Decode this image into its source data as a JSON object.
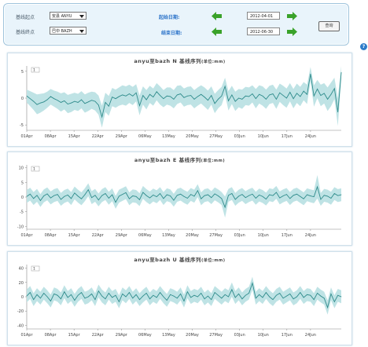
{
  "query": {
    "station_label": "基线起点",
    "station_value": "安县 ANYU",
    "end_label": "基线终点",
    "end_value": "巴中 BAZH",
    "start_date_label": "起始日期:",
    "start_date": "2012-04-01",
    "end_date_label": "结束日期:",
    "end_date": "2012-06-30",
    "query_button": "查询",
    "help_icon": "?"
  },
  "colors": {
    "line": "#2e8b8b",
    "band": "#bfe3e5",
    "arrow": "#3aa22a"
  },
  "chart_data": [
    {
      "type": "line",
      "title": "anyu至bazh N 基线序列",
      "unit_note": "(单位:mm)",
      "legend_box": "1",
      "x_labels": [
        "01Apr",
        "08Apr",
        "15Apr",
        "22Apr",
        "29Apr",
        "06May",
        "13May",
        "20May",
        "27May",
        "03Jun",
        "10Jun",
        "17Jun",
        "24Jun"
      ],
      "ylim": [
        -6,
        6
      ],
      "yticks": [
        5,
        0,
        -5
      ],
      "values": [
        0.4,
        -0.1,
        -0.6,
        -1.2,
        -0.9,
        -0.7,
        -0.3,
        0.3,
        -0.1,
        -0.4,
        -0.8,
        -0.5,
        -1.1,
        -0.9,
        -0.6,
        -0.8,
        -0.3,
        -1.0,
        -0.7,
        -0.4,
        -0.6,
        -1.3,
        -3.5,
        -0.8,
        -1.5,
        0.2,
        -0.1,
        0.3,
        0.6,
        0.4,
        0.8,
        0.4,
        1.0,
        -1.4,
        0.5,
        -0.3,
        0.7,
        0.2,
        1.2,
        0.5,
        -0.1,
        0.4,
        0.3,
        -0.2,
        0.6,
        0.8,
        0.1,
        0.4,
        0.5,
        -0.2,
        0.3,
        0.7,
        0.2,
        -0.4,
        0.5,
        -1.0,
        -0.2,
        0.4,
        2.2,
        -0.5,
        0.6,
        -0.6,
        0.0,
        -0.2,
        0.4,
        0.3,
        0.8,
        -0.1,
        0.7,
        0.4,
        -0.2,
        0.6,
        0.8,
        -0.2,
        1.0,
        0.5,
        0.0,
        1.1,
        -0.1,
        0.9,
        0.3,
        1.3,
        0.7,
        4.5,
        0.4,
        1.7,
        0.5,
        0.9,
        -0.2,
        0.7,
        1.8,
        -2.6,
        4.8
      ],
      "upper": [
        1.6,
        1.3,
        1.0,
        0.7,
        0.8,
        0.9,
        1.2,
        1.7,
        1.4,
        1.2,
        0.9,
        1.1,
        0.6,
        0.8,
        1.0,
        0.8,
        1.3,
        0.7,
        1.0,
        1.2,
        1.1,
        0.5,
        -1.4,
        1.0,
        0.4,
        1.9,
        1.6,
        2.0,
        2.4,
        2.2,
        2.5,
        2.1,
        2.6,
        0.5,
        2.2,
        1.5,
        2.3,
        1.8,
        2.8,
        2.2,
        1.5,
        2.0,
        2.0,
        1.5,
        2.3,
        2.4,
        1.8,
        2.1,
        2.2,
        1.5,
        2.0,
        2.4,
        2.0,
        1.4,
        2.2,
        0.8,
        1.5,
        2.1,
        3.8,
        1.3,
        2.3,
        1.2,
        1.7,
        1.6,
        2.1,
        2.0,
        2.4,
        1.7,
        2.4,
        2.2,
        1.6,
        2.3,
        2.5,
        1.6,
        2.7,
        2.3,
        1.8,
        2.8,
        1.7,
        2.7,
        2.1,
        3.0,
        2.5,
        5.8,
        2.4,
        3.4,
        2.5,
        2.8,
        2.0,
        2.9,
        3.8,
        0.0,
        6.0
      ],
      "lower": [
        -0.8,
        -1.5,
        -2.2,
        -3.0,
        -2.7,
        -2.3,
        -1.8,
        -1.2,
        -1.6,
        -2.0,
        -2.5,
        -2.1,
        -2.8,
        -2.6,
        -2.2,
        -2.4,
        -1.9,
        -2.7,
        -2.4,
        -2.0,
        -2.3,
        -3.1,
        -5.5,
        -2.6,
        -3.3,
        -1.5,
        -1.8,
        -1.4,
        -1.2,
        -1.4,
        -0.9,
        -1.3,
        -0.6,
        -3.2,
        -1.2,
        -2.1,
        -0.9,
        -1.4,
        -0.4,
        -1.2,
        -1.7,
        -1.2,
        -1.4,
        -1.9,
        -1.1,
        -0.8,
        -1.6,
        -1.3,
        -1.2,
        -1.9,
        -1.4,
        -1.0,
        -1.6,
        -2.2,
        -1.2,
        -2.8,
        -1.9,
        -1.3,
        0.6,
        -2.3,
        -1.1,
        -2.4,
        -1.7,
        -2.0,
        -1.3,
        -1.4,
        -0.8,
        -1.9,
        -1.0,
        -1.4,
        -2.0,
        -1.1,
        -0.9,
        -2.0,
        -0.7,
        -1.3,
        -1.8,
        -0.6,
        -1.9,
        -0.9,
        -1.5,
        -0.4,
        -1.1,
        3.2,
        -1.6,
        0.0,
        -1.5,
        -1.0,
        -2.4,
        -1.5,
        -0.2,
        -5.2,
        3.6
      ]
    },
    {
      "type": "line",
      "title": "anyu至bazh E 基线序列",
      "unit_note": "(单位:mm)",
      "legend_box": "1",
      "x_labels": [
        "01Apr",
        "08Apr",
        "15Apr",
        "22Apr",
        "29Apr",
        "06May",
        "13May",
        "20May",
        "27May",
        "03Jun",
        "10Jun",
        "17Jun",
        "24Jun"
      ],
      "ylim": [
        -11,
        11
      ],
      "yticks": [
        10,
        5,
        0,
        -5,
        -10
      ],
      "values": [
        0.2,
        1.0,
        -0.5,
        0.6,
        -1.2,
        0.4,
        1.1,
        -0.3,
        0.5,
        0.9,
        -0.8,
        0.2,
        0.7,
        -0.5,
        1.4,
        0.3,
        -0.6,
        0.8,
        2.5,
        -0.2,
        0.6,
        -1.0,
        0.5,
        1.2,
        -0.4,
        0.8,
        -1.8,
        0.3,
        0.9,
        1.5,
        -0.6,
        0.4,
        0.2,
        -0.9,
        1.6,
        0.5,
        -0.3,
        0.7,
        0.1,
        1.2,
        -0.5,
        0.8,
        0.4,
        -1.1,
        0.6,
        1.0,
        0.2,
        -0.4,
        0.9,
        0.3,
        2.2,
        -0.6,
        0.5,
        0.8,
        -0.2,
        1.1,
        0.4,
        -0.5,
        -3.5,
        0.6,
        1.2,
        -0.8,
        0.3,
        0.9,
        -0.2,
        0.5,
        1.0,
        -0.4,
        0.7,
        0.2,
        -0.7,
        0.8,
        0.5,
        1.6,
        -0.3,
        0.4,
        0.9,
        -0.5,
        0.6,
        1.0,
        0.2,
        -0.6,
        0.8,
        0.4,
        0.1,
        3.5,
        -0.8,
        0.6,
        0.3,
        -0.4,
        1.2,
        0.5,
        0.8
      ],
      "upper": [
        2.4,
        3.2,
        1.7,
        2.8,
        1.0,
        2.6,
        3.3,
        1.9,
        2.7,
        3.1,
        1.4,
        2.4,
        2.9,
        1.7,
        3.6,
        2.5,
        1.6,
        3.0,
        4.7,
        2.0,
        2.8,
        1.2,
        2.7,
        3.4,
        1.8,
        3.0,
        0.4,
        2.5,
        3.1,
        3.7,
        1.6,
        2.6,
        2.4,
        1.3,
        3.8,
        2.7,
        1.9,
        2.9,
        2.3,
        3.4,
        1.7,
        3.0,
        2.6,
        1.1,
        2.8,
        3.2,
        2.4,
        1.8,
        3.1,
        2.5,
        4.4,
        1.6,
        2.7,
        3.0,
        2.0,
        3.3,
        2.6,
        1.7,
        0.2,
        2.8,
        3.4,
        1.4,
        2.5,
        3.1,
        2.0,
        2.7,
        3.2,
        1.8,
        2.9,
        2.4,
        1.5,
        3.0,
        2.7,
        3.8,
        1.9,
        2.6,
        3.1,
        1.7,
        2.8,
        3.2,
        2.4,
        1.6,
        3.0,
        2.6,
        2.3,
        7.5,
        1.4,
        2.8,
        2.5,
        1.8,
        3.4,
        2.7,
        3.0
      ],
      "lower": [
        -2.0,
        -1.2,
        -2.7,
        -1.6,
        -3.4,
        -1.8,
        -1.1,
        -2.5,
        -1.7,
        -1.3,
        -3.0,
        -2.0,
        -1.5,
        -2.7,
        -0.8,
        -1.9,
        -2.8,
        -1.4,
        0.3,
        -2.4,
        -1.6,
        -3.2,
        -1.7,
        -1.0,
        -2.6,
        -1.4,
        -4.0,
        -1.9,
        -1.3,
        -0.7,
        -2.8,
        -1.8,
        -2.0,
        -3.1,
        -0.6,
        -1.7,
        -2.5,
        -1.5,
        -2.1,
        -1.0,
        -2.7,
        -1.4,
        -1.8,
        -3.3,
        -1.6,
        -1.2,
        -2.0,
        -2.6,
        -1.3,
        -1.9,
        0.0,
        -2.8,
        -1.7,
        -1.4,
        -2.4,
        -1.1,
        -1.8,
        -2.7,
        -7.0,
        -1.6,
        -1.0,
        -3.0,
        -1.9,
        -1.3,
        -2.4,
        -1.7,
        -1.2,
        -2.6,
        -1.5,
        -2.0,
        -2.9,
        -1.4,
        -1.7,
        -0.6,
        -2.5,
        -1.8,
        -1.3,
        -2.7,
        -1.6,
        -1.2,
        -2.0,
        -2.8,
        -1.4,
        -1.8,
        -2.1,
        -0.5,
        -3.0,
        -1.6,
        -1.9,
        -2.6,
        -1.0,
        -1.7,
        -1.4
      ]
    },
    {
      "type": "line",
      "title": "anyu至bazh U 基线序列",
      "unit_note": "(单位:mm)",
      "legend_box": "1",
      "x_labels": [
        "01Apr",
        "08Apr",
        "15Apr",
        "22Apr",
        "29Apr",
        "06May",
        "13May",
        "20May",
        "27May",
        "03Jun",
        "10Jun",
        "17Jun",
        "24Jun"
      ],
      "ylim": [
        -45,
        45
      ],
      "yticks": [
        40,
        20,
        0,
        -20,
        -40
      ],
      "values": [
        1,
        6,
        -4,
        3,
        -2,
        5,
        0,
        -6,
        4,
        2,
        -3,
        7,
        -1,
        3,
        -5,
        2,
        6,
        -2,
        0,
        4,
        -4,
        8,
        1,
        -3,
        5,
        -1,
        2,
        -7,
        4,
        0,
        6,
        -2,
        3,
        -4,
        1,
        5,
        -3,
        2,
        -1,
        6,
        0,
        -5,
        3,
        1,
        -2,
        4,
        -6,
        7,
        -1,
        2,
        0,
        5,
        -3,
        1,
        -4,
        6,
        2,
        -2,
        3,
        0,
        10,
        -1,
        4,
        -3,
        2,
        5,
        19,
        -2,
        3,
        -1,
        6,
        0,
        -4,
        2,
        5,
        -2,
        1,
        4,
        -3,
        0,
        6,
        -1,
        3,
        2,
        -4,
        5,
        1,
        -2,
        -15,
        4,
        -7,
        2,
        0
      ],
      "upper": [
        10,
        15,
        5,
        12,
        7,
        14,
        9,
        3,
        13,
        11,
        6,
        16,
        8,
        12,
        4,
        11,
        15,
        7,
        9,
        13,
        5,
        17,
        10,
        6,
        14,
        8,
        11,
        2,
        13,
        9,
        15,
        7,
        12,
        5,
        10,
        14,
        6,
        11,
        8,
        15,
        9,
        4,
        12,
        10,
        7,
        13,
        3,
        16,
        8,
        11,
        9,
        14,
        6,
        10,
        5,
        15,
        11,
        7,
        12,
        9,
        20,
        8,
        13,
        6,
        11,
        14,
        28,
        7,
        12,
        8,
        15,
        9,
        5,
        11,
        14,
        7,
        10,
        13,
        6,
        9,
        15,
        8,
        12,
        11,
        5,
        14,
        10,
        7,
        -5,
        13,
        2,
        11,
        9
      ],
      "lower": [
        -8,
        -3,
        -13,
        -6,
        -11,
        -4,
        -9,
        -15,
        -5,
        -7,
        -12,
        -2,
        -10,
        -6,
        -14,
        -7,
        -3,
        -11,
        -9,
        -5,
        -13,
        -1,
        -8,
        -12,
        -4,
        -10,
        -7,
        -16,
        -5,
        -9,
        -3,
        -11,
        -6,
        -13,
        -8,
        -4,
        -12,
        -7,
        -10,
        -3,
        -9,
        -14,
        -6,
        -8,
        -11,
        -5,
        -15,
        -2,
        -10,
        -7,
        -9,
        -4,
        -12,
        -8,
        -13,
        -3,
        -7,
        -11,
        -6,
        -9,
        0,
        -10,
        -5,
        -12,
        -7,
        -4,
        10,
        -11,
        -6,
        -10,
        -3,
        -9,
        -13,
        -7,
        -4,
        -11,
        -8,
        -5,
        -12,
        -9,
        -3,
        -10,
        -6,
        -7,
        -13,
        -4,
        -8,
        -11,
        -25,
        -5,
        -16,
        -7,
        -9
      ]
    }
  ]
}
